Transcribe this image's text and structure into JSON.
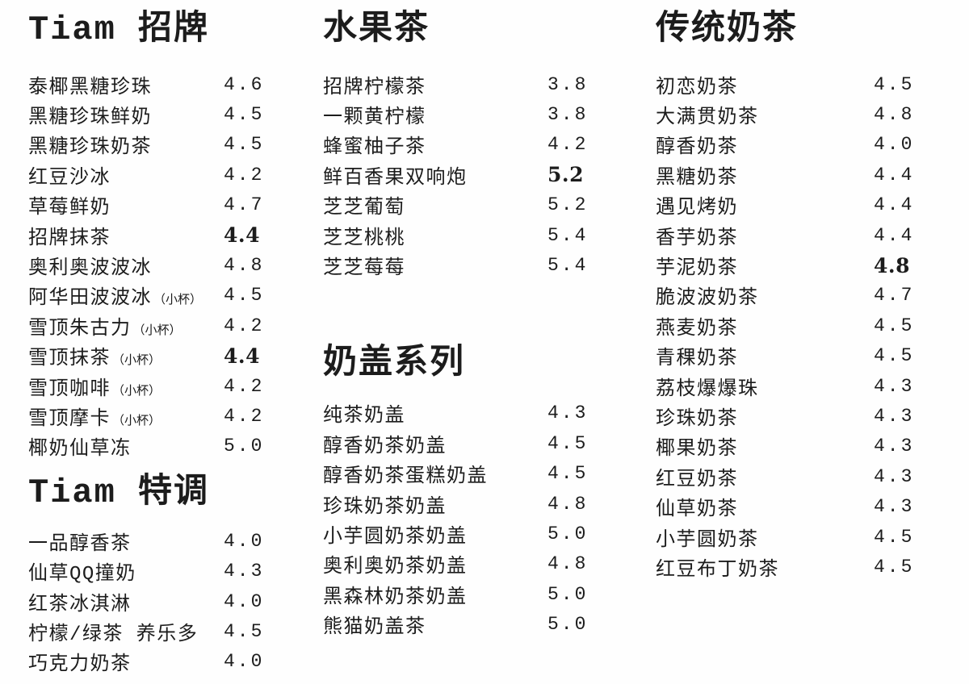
{
  "page": {
    "background": "#fefefe",
    "text_color": "#1c1c1c"
  },
  "columns": [
    {
      "sections": [
        {
          "title": "Tiam 招牌",
          "items": [
            {
              "name": "泰椰黑糖珍珠",
              "price": "4.6"
            },
            {
              "name": "黑糖珍珠鲜奶",
              "price": "4.5"
            },
            {
              "name": "黑糖珍珠奶茶",
              "price": "4.5"
            },
            {
              "name": "红豆沙冰",
              "price": "4.2"
            },
            {
              "name": "草莓鲜奶",
              "price": "4.7"
            },
            {
              "name": "招牌抹茶",
              "price": "4.4",
              "bold": true
            },
            {
              "name": "奥利奥波波冰",
              "price": "4.8"
            },
            {
              "name": "阿华田波波冰",
              "suffix": "（小杯）",
              "price": "4.5"
            },
            {
              "name": "雪顶朱古力",
              "suffix": "（小杯）",
              "price": "4.2"
            },
            {
              "name": "雪顶抹茶",
              "suffix": "（小杯）",
              "price": "4.4",
              "bold": true
            },
            {
              "name": "雪顶咖啡",
              "suffix": "（小杯）",
              "price": "4.2"
            },
            {
              "name": "雪顶摩卡",
              "suffix": "（小杯）",
              "price": "4.2"
            },
            {
              "name": "椰奶仙草冻",
              "price": "5.0"
            }
          ]
        },
        {
          "title": "Tiam 特调",
          "items": [
            {
              "name": "一品醇香茶",
              "price": "4.0"
            },
            {
              "name": "仙草QQ撞奶",
              "price": "4.3"
            },
            {
              "name": "红茶冰淇淋",
              "price": "4.0"
            },
            {
              "name": "柠檬/绿茶 养乐多",
              "price": "4.5"
            },
            {
              "name": "巧克力奶茶",
              "price": "4.0"
            }
          ]
        }
      ]
    },
    {
      "sections": [
        {
          "title": "水果茶",
          "items": [
            {
              "name": "招牌柠檬茶",
              "price": "3.8"
            },
            {
              "name": "一颗黄柠檬",
              "price": "3.8"
            },
            {
              "name": "蜂蜜柚子茶",
              "price": "4.2"
            },
            {
              "name": "鲜百香果双响炮",
              "price": "5.2",
              "bold": true
            },
            {
              "name": "芝芝葡萄",
              "price": "5.2"
            },
            {
              "name": "芝芝桃桃",
              "price": "5.4"
            },
            {
              "name": "芝芝莓莓",
              "price": "5.4"
            }
          ]
        },
        {
          "title": "奶盖系列",
          "items": [
            {
              "name": "纯茶奶盖",
              "price": "4.3"
            },
            {
              "name": "醇香奶茶奶盖",
              "price": "4.5"
            },
            {
              "name": "醇香奶茶蛋糕奶盖",
              "price": "4.5"
            },
            {
              "name": "珍珠奶茶奶盖",
              "price": "4.8"
            },
            {
              "name": "小芋圆奶茶奶盖",
              "price": "5.0"
            },
            {
              "name": "奥利奥奶茶奶盖",
              "price": "4.8"
            },
            {
              "name": "黑森林奶茶奶盖",
              "price": "5.0"
            },
            {
              "name": "熊猫奶盖茶",
              "price": "5.0"
            }
          ]
        }
      ]
    },
    {
      "sections": [
        {
          "title": "传统奶茶",
          "items": [
            {
              "name": "初恋奶茶",
              "price": "4.5"
            },
            {
              "name": "大满贯奶茶",
              "price": "4.8"
            },
            {
              "name": "醇香奶茶",
              "price": "4.0"
            },
            {
              "name": "黑糖奶茶",
              "price": "4.4"
            },
            {
              "name": "遇见烤奶",
              "price": "4.4"
            },
            {
              "name": "香芋奶茶",
              "price": "4.4"
            },
            {
              "name": "芋泥奶茶",
              "price": "4.8",
              "bold": true
            },
            {
              "name": "脆波波奶茶",
              "price": "4.7"
            },
            {
              "name": "燕麦奶茶",
              "price": "4.5"
            },
            {
              "name": "青稞奶茶",
              "price": "4.5"
            },
            {
              "name": "荔枝爆爆珠",
              "price": "4.3"
            },
            {
              "name": "珍珠奶茶",
              "price": "4.3"
            },
            {
              "name": "椰果奶茶",
              "price": "4.3"
            },
            {
              "name": "红豆奶茶",
              "price": "4.3"
            },
            {
              "name": "仙草奶茶",
              "price": "4.3"
            },
            {
              "name": "小芋圆奶茶",
              "price": "4.5"
            },
            {
              "name": "红豆布丁奶茶",
              "price": "4.5"
            }
          ]
        }
      ]
    }
  ]
}
